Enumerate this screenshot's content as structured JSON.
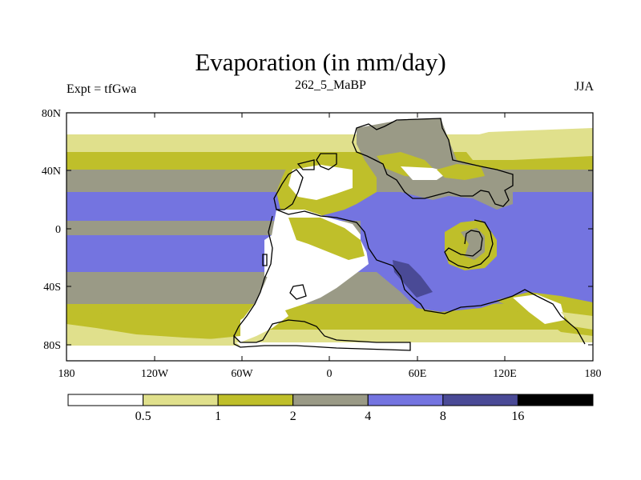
{
  "title": "Evaporation (in mm/day)",
  "subtitle_left": "Expt = tfGwa",
  "subtitle_center": "262_5_MaBP",
  "subtitle_right": "JJA",
  "lat_ticks": [
    "80N",
    "40N",
    "0",
    "40S",
    "80S"
  ],
  "lon_ticks": [
    "180",
    "120W",
    "60W",
    "0",
    "60E",
    "120E",
    "180"
  ],
  "colorbar": {
    "colors": [
      "#ffffff",
      "#e0e08c",
      "#bfbf2a",
      "#9a9a86",
      "#7474e0",
      "#4a4a96",
      "#000000"
    ],
    "labels": [
      "0.5",
      "1",
      "2",
      "4",
      "8",
      "16"
    ]
  }
}
